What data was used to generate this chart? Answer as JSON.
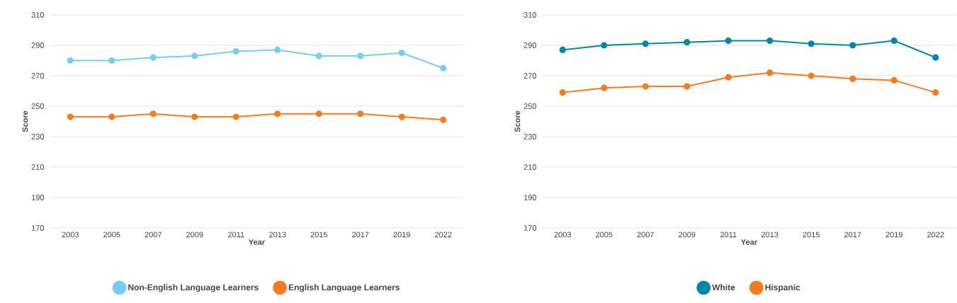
{
  "chart_data": [
    {
      "type": "line",
      "categories": [
        "2003",
        "2005",
        "2007",
        "2009",
        "2011",
        "2013",
        "2015",
        "2017",
        "2019",
        "2022"
      ],
      "xlabel": "Year",
      "ylabel": "Score",
      "ylim": [
        170,
        310
      ],
      "yticks": [
        170,
        190,
        210,
        230,
        250,
        270,
        290,
        310
      ],
      "grid": "y",
      "legend": "bottom",
      "marker": "circle",
      "series": [
        {
          "name": "Non-English Language Learners",
          "color": "#75cdf2",
          "values": [
            280,
            280,
            282,
            283,
            286,
            287,
            283,
            283,
            285,
            275
          ]
        },
        {
          "name": "English Language Learners",
          "color": "#f47b20",
          "values": [
            243,
            243,
            245,
            243,
            243,
            245,
            245,
            245,
            243,
            241
          ]
        }
      ]
    },
    {
      "type": "line",
      "categories": [
        "2003",
        "2005",
        "2007",
        "2009",
        "2011",
        "2013",
        "2015",
        "2017",
        "2019",
        "2022"
      ],
      "xlabel": "Year",
      "ylabel": "Score",
      "ylim": [
        170,
        310
      ],
      "yticks": [
        170,
        190,
        210,
        230,
        250,
        270,
        290,
        310
      ],
      "grid": "y",
      "legend": "bottom",
      "marker": "circle",
      "series": [
        {
          "name": "White",
          "color": "#0087aa",
          "values": [
            287,
            290,
            291,
            292,
            293,
            293,
            291,
            290,
            293,
            282
          ]
        },
        {
          "name": "Hispanic",
          "color": "#f47b20",
          "values": [
            259,
            262,
            263,
            263,
            269,
            272,
            270,
            268,
            267,
            259
          ]
        }
      ]
    }
  ]
}
